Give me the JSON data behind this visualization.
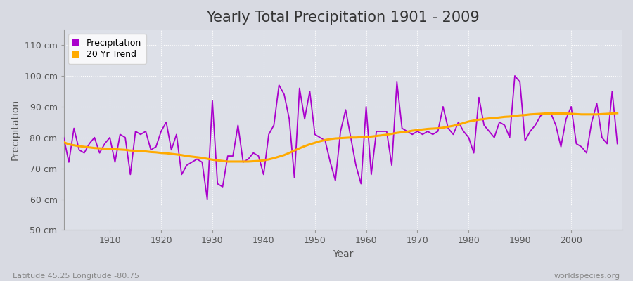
{
  "title": "Yearly Total Precipitation 1901 - 2009",
  "xlabel": "Year",
  "ylabel": "Precipitation",
  "footnote_left": "Latitude 45.25 Longitude -80.75",
  "footnote_right": "worldspecies.org",
  "years": [
    1901,
    1902,
    1903,
    1904,
    1905,
    1906,
    1907,
    1908,
    1909,
    1910,
    1911,
    1912,
    1913,
    1914,
    1915,
    1916,
    1917,
    1918,
    1919,
    1920,
    1921,
    1922,
    1923,
    1924,
    1925,
    1926,
    1927,
    1928,
    1929,
    1930,
    1931,
    1932,
    1933,
    1934,
    1935,
    1936,
    1937,
    1938,
    1939,
    1940,
    1941,
    1942,
    1943,
    1944,
    1945,
    1946,
    1947,
    1948,
    1949,
    1950,
    1951,
    1952,
    1953,
    1954,
    1955,
    1956,
    1957,
    1958,
    1959,
    1960,
    1961,
    1962,
    1963,
    1964,
    1965,
    1966,
    1967,
    1968,
    1969,
    1970,
    1971,
    1972,
    1973,
    1974,
    1975,
    1976,
    1977,
    1978,
    1979,
    1980,
    1981,
    1982,
    1983,
    1984,
    1985,
    1986,
    1987,
    1988,
    1989,
    1990,
    1991,
    1992,
    1993,
    1994,
    1995,
    1996,
    1997,
    1998,
    1999,
    2000,
    2001,
    2002,
    2003,
    2004,
    2005,
    2006,
    2007,
    2008,
    2009
  ],
  "precip": [
    80,
    72,
    83,
    76,
    75,
    78,
    80,
    75,
    78,
    80,
    72,
    81,
    80,
    68,
    82,
    81,
    82,
    76,
    77,
    82,
    85,
    76,
    81,
    68,
    71,
    72,
    73,
    72,
    60,
    92,
    65,
    64,
    74,
    74,
    84,
    72,
    73,
    75,
    74,
    68,
    81,
    84,
    97,
    94,
    86,
    67,
    96,
    86,
    95,
    81,
    80,
    79,
    72,
    66,
    82,
    89,
    80,
    71,
    65,
    90,
    68,
    82,
    82,
    82,
    71,
    98,
    83,
    82,
    81,
    82,
    81,
    82,
    81,
    82,
    90,
    83,
    81,
    85,
    82,
    80,
    75,
    93,
    84,
    82,
    80,
    85,
    84,
    80,
    100,
    98,
    79,
    82,
    84,
    87,
    88,
    88,
    84,
    77,
    86,
    90,
    78,
    77,
    75,
    85,
    91,
    80,
    78,
    95,
    78
  ],
  "trend": [
    78.5,
    77.8,
    77.5,
    77.2,
    77.0,
    76.8,
    76.6,
    76.5,
    76.4,
    76.3,
    76.2,
    76.1,
    76.0,
    75.8,
    75.7,
    75.6,
    75.5,
    75.3,
    75.2,
    75.0,
    74.9,
    74.7,
    74.5,
    74.3,
    74.0,
    73.8,
    73.6,
    73.4,
    73.1,
    72.8,
    72.6,
    72.4,
    72.2,
    72.2,
    72.2,
    72.2,
    72.2,
    72.3,
    72.4,
    72.6,
    72.9,
    73.3,
    73.8,
    74.3,
    75.0,
    75.8,
    76.5,
    77.2,
    77.8,
    78.3,
    78.8,
    79.2,
    79.5,
    79.7,
    79.8,
    79.9,
    80.0,
    80.0,
    80.1,
    80.2,
    80.3,
    80.5,
    80.7,
    80.9,
    81.2,
    81.5,
    81.7,
    81.9,
    82.2,
    82.4,
    82.6,
    82.8,
    82.9,
    83.0,
    83.2,
    83.5,
    83.8,
    84.2,
    84.7,
    85.2,
    85.5,
    85.8,
    86.0,
    86.2,
    86.3,
    86.5,
    86.7,
    86.8,
    87.0,
    87.2,
    87.3,
    87.5,
    87.6,
    87.7,
    87.8,
    87.8,
    87.8,
    87.8,
    87.8,
    87.7,
    87.6,
    87.5,
    87.5,
    87.5,
    87.5,
    87.6,
    87.7,
    87.8,
    87.9
  ],
  "precip_color": "#aa00cc",
  "trend_color": "#ffaa00",
  "bg_color": "#d8dae2",
  "plot_bg_color": "#dde0e8",
  "grid_color": "#ffffff",
  "ylim": [
    50,
    115
  ],
  "xlim": [
    1901,
    2010
  ],
  "yticks": [
    50,
    60,
    70,
    80,
    90,
    100,
    110
  ],
  "ytick_labels": [
    "50 cm",
    "60 cm",
    "70 cm",
    "80 cm",
    "90 cm",
    "100 cm",
    "110 cm"
  ],
  "xticks": [
    1910,
    1920,
    1930,
    1940,
    1950,
    1960,
    1970,
    1980,
    1990,
    2000
  ],
  "title_fontsize": 15,
  "axis_fontsize": 10,
  "tick_fontsize": 9
}
